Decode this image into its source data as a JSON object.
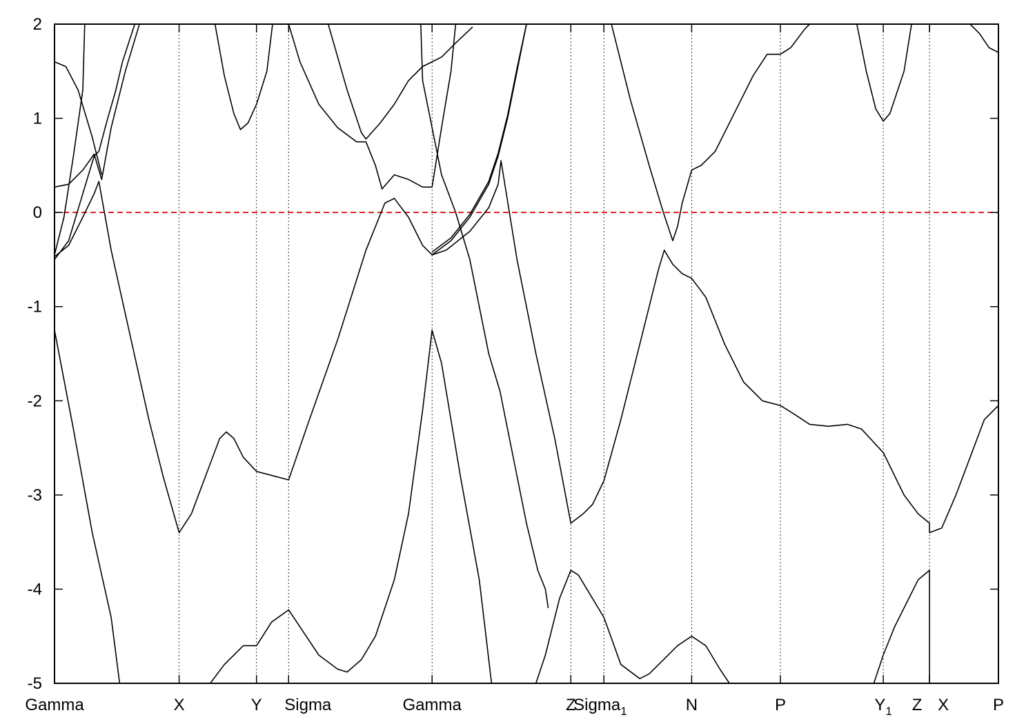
{
  "chart_data": {
    "type": "line",
    "title": "",
    "xlabel": "",
    "ylabel": "",
    "xlim": [
      0,
      1.0
    ],
    "ylim": [
      -5,
      2
    ],
    "y_ticks": [
      2,
      1,
      0,
      -1,
      -2,
      -3,
      -4,
      -5
    ],
    "grid": "vertical dotted lines at high-symmetry points",
    "fermi_level": {
      "y": 0,
      "color": "#dd0000",
      "style": "dashed"
    },
    "line_color": "#000000",
    "k_points": [
      {
        "label": "Gamma",
        "sub": "",
        "x": 0.0
      },
      {
        "label": "X",
        "sub": "",
        "x": 0.132
      },
      {
        "label": "Y",
        "sub": "",
        "x": 0.214
      },
      {
        "label": "Sigma",
        "sub": "",
        "x": 0.248
      },
      {
        "label": "Gamma",
        "sub": "",
        "x": 0.4
      },
      {
        "label": "Z",
        "sub": "",
        "x": 0.547
      },
      {
        "label": "Sigma",
        "sub": "1",
        "x": 0.582
      },
      {
        "label": "N",
        "sub": "",
        "x": 0.675
      },
      {
        "label": "P",
        "sub": "",
        "x": 0.769
      },
      {
        "label": "Y",
        "sub": "1",
        "x": 0.878
      },
      {
        "label": "Z",
        "sub": "",
        "x": 0.927
      },
      {
        "label": "X",
        "sub": "",
        "x": 0.927
      },
      {
        "label": "P",
        "sub": "",
        "x": 1.0
      }
    ],
    "series": [
      {
        "values": [
          [
            0.0,
            -1.25
          ],
          [
            0.02,
            -2.3
          ],
          [
            0.04,
            -3.4
          ],
          [
            0.06,
            -4.3
          ],
          [
            0.069,
            -5.0
          ]
        ]
      },
      {
        "values": [
          [
            0.0,
            -0.45
          ],
          [
            0.01,
            -0.05
          ],
          [
            0.02,
            0.6
          ],
          [
            0.03,
            1.3
          ],
          [
            0.032,
            2.0
          ]
        ]
      },
      {
        "values": [
          [
            0.0,
            1.6
          ],
          [
            0.012,
            1.55
          ],
          [
            0.025,
            1.3
          ],
          [
            0.04,
            0.8
          ],
          [
            0.05,
            0.4
          ]
        ]
      },
      {
        "values": [
          [
            0.0,
            0.27
          ],
          [
            0.015,
            0.3
          ],
          [
            0.03,
            0.45
          ],
          [
            0.042,
            0.62
          ],
          [
            0.047,
            0.45
          ],
          [
            0.05,
            0.35
          ],
          [
            0.06,
            0.9
          ],
          [
            0.075,
            1.5
          ],
          [
            0.09,
            2.0
          ]
        ]
      },
      {
        "values": [
          [
            0.0,
            -0.47
          ],
          [
            0.015,
            -0.35
          ],
          [
            0.03,
            -0.05
          ],
          [
            0.042,
            0.2
          ],
          [
            0.047,
            0.33
          ],
          [
            0.06,
            -0.4
          ],
          [
            0.08,
            -1.3
          ],
          [
            0.1,
            -2.2
          ],
          [
            0.115,
            -2.8
          ],
          [
            0.132,
            -3.4
          ],
          [
            0.145,
            -3.2
          ],
          [
            0.16,
            -2.8
          ],
          [
            0.175,
            -2.4
          ],
          [
            0.182,
            -2.33
          ],
          [
            0.19,
            -2.4
          ],
          [
            0.2,
            -2.6
          ],
          [
            0.214,
            -2.75
          ],
          [
            0.248,
            -2.84
          ],
          [
            0.27,
            -2.2
          ],
          [
            0.3,
            -1.35
          ],
          [
            0.33,
            -0.4
          ],
          [
            0.35,
            0.1
          ],
          [
            0.36,
            0.15
          ],
          [
            0.375,
            -0.05
          ],
          [
            0.39,
            -0.35
          ],
          [
            0.4,
            -0.45
          ],
          [
            0.415,
            -0.4
          ],
          [
            0.44,
            -0.2
          ],
          [
            0.46,
            0.05
          ],
          [
            0.47,
            0.3
          ],
          [
            0.473,
            0.55
          ],
          [
            0.49,
            -0.5
          ],
          [
            0.51,
            -1.5
          ],
          [
            0.53,
            -2.4
          ],
          [
            0.547,
            -3.3
          ],
          [
            0.56,
            -3.2
          ],
          [
            0.57,
            -3.1
          ],
          [
            0.582,
            -2.85
          ],
          [
            0.6,
            -2.2
          ],
          [
            0.62,
            -1.4
          ],
          [
            0.64,
            -0.6
          ],
          [
            0.646,
            -0.4
          ],
          [
            0.655,
            -0.55
          ],
          [
            0.665,
            -0.65
          ],
          [
            0.675,
            -0.7
          ],
          [
            0.69,
            -0.9
          ],
          [
            0.71,
            -1.4
          ],
          [
            0.73,
            -1.8
          ],
          [
            0.75,
            -2.0
          ],
          [
            0.769,
            -2.05
          ],
          [
            0.785,
            -2.15
          ],
          [
            0.8,
            -2.25
          ],
          [
            0.82,
            -2.27
          ],
          [
            0.84,
            -2.25
          ],
          [
            0.855,
            -2.3
          ],
          [
            0.878,
            -2.55
          ],
          [
            0.9,
            -3.0
          ],
          [
            0.915,
            -3.2
          ],
          [
            0.927,
            -3.3
          ],
          [
            0.927,
            -3.4
          ],
          [
            0.94,
            -3.35
          ],
          [
            0.955,
            -3.0
          ],
          [
            0.97,
            -2.6
          ],
          [
            0.985,
            -2.2
          ],
          [
            1.0,
            -2.05
          ]
        ]
      },
      {
        "values": [
          [
            0.0,
            -0.5
          ],
          [
            0.015,
            -0.3
          ],
          [
            0.03,
            0.2
          ],
          [
            0.042,
            0.6
          ],
          [
            0.047,
            0.65
          ],
          [
            0.055,
            0.95
          ],
          [
            0.065,
            1.3
          ],
          [
            0.072,
            1.6
          ],
          [
            0.085,
            2.0
          ]
        ]
      },
      {
        "values": [
          [
            0.165,
            -5.0
          ],
          [
            0.18,
            -4.8
          ],
          [
            0.2,
            -4.6
          ],
          [
            0.214,
            -4.6
          ],
          [
            0.23,
            -4.35
          ],
          [
            0.248,
            -4.22
          ],
          [
            0.26,
            -4.4
          ],
          [
            0.28,
            -4.7
          ],
          [
            0.3,
            -4.85
          ],
          [
            0.31,
            -4.88
          ],
          [
            0.325,
            -4.75
          ],
          [
            0.34,
            -4.5
          ],
          [
            0.36,
            -3.9
          ],
          [
            0.375,
            -3.2
          ],
          [
            0.39,
            -2.1
          ],
          [
            0.4,
            -1.25
          ],
          [
            0.41,
            -1.6
          ],
          [
            0.43,
            -2.8
          ],
          [
            0.45,
            -3.9
          ],
          [
            0.463,
            -5.0
          ]
        ]
      },
      {
        "values": [
          [
            0.17,
            2.0
          ],
          [
            0.18,
            1.45
          ],
          [
            0.19,
            1.05
          ],
          [
            0.197,
            0.88
          ],
          [
            0.205,
            0.95
          ],
          [
            0.214,
            1.15
          ],
          [
            0.225,
            1.5
          ],
          [
            0.231,
            2.0
          ]
        ]
      },
      {
        "values": [
          [
            0.248,
            2.0
          ],
          [
            0.26,
            1.6
          ],
          [
            0.28,
            1.15
          ],
          [
            0.3,
            0.9
          ],
          [
            0.32,
            0.75
          ],
          [
            0.33,
            0.75
          ],
          [
            0.34,
            0.5
          ],
          [
            0.347,
            0.25
          ],
          [
            0.36,
            0.4
          ],
          [
            0.375,
            0.35
          ],
          [
            0.39,
            0.27
          ],
          [
            0.4,
            0.27
          ],
          [
            0.41,
            0.9
          ],
          [
            0.42,
            1.5
          ],
          [
            0.425,
            2.0
          ]
        ]
      },
      {
        "values": [
          [
            0.29,
            2.0
          ],
          [
            0.31,
            1.3
          ],
          [
            0.325,
            0.85
          ],
          [
            0.33,
            0.78
          ],
          [
            0.345,
            0.95
          ],
          [
            0.36,
            1.15
          ],
          [
            0.375,
            1.4
          ],
          [
            0.39,
            1.55
          ],
          [
            0.4,
            1.6
          ],
          [
            0.41,
            1.65
          ],
          [
            0.425,
            1.8
          ],
          [
            0.443,
            1.97
          ]
        ]
      },
      {
        "values": [
          [
            0.4,
            -0.45
          ],
          [
            0.42,
            -0.3
          ],
          [
            0.44,
            -0.05
          ],
          [
            0.46,
            0.3
          ],
          [
            0.47,
            0.6
          ],
          [
            0.48,
            1.0
          ],
          [
            0.49,
            1.5
          ],
          [
            0.5,
            2.0
          ]
        ]
      },
      {
        "values": [
          [
            0.4,
            -0.42
          ],
          [
            0.42,
            -0.27
          ],
          [
            0.44,
            -0.02
          ],
          [
            0.46,
            0.33
          ],
          [
            0.47,
            0.63
          ],
          [
            0.48,
            1.03
          ],
          [
            0.49,
            1.53
          ],
          [
            0.5,
            2.0
          ]
        ]
      },
      {
        "values": [
          [
            0.388,
            2.0
          ],
          [
            0.39,
            1.4
          ],
          [
            0.4,
            0.9
          ],
          [
            0.41,
            0.4
          ],
          [
            0.425,
            0.0
          ],
          [
            0.44,
            -0.5
          ],
          [
            0.45,
            -1.0
          ],
          [
            0.46,
            -1.5
          ],
          [
            0.472,
            -1.9
          ],
          [
            0.48,
            -2.3
          ],
          [
            0.49,
            -2.8
          ],
          [
            0.5,
            -3.3
          ],
          [
            0.512,
            -3.8
          ],
          [
            0.52,
            -4.0
          ],
          [
            0.523,
            -4.2
          ]
        ]
      },
      {
        "values": [
          [
            0.51,
            -5.0
          ],
          [
            0.52,
            -4.7
          ],
          [
            0.535,
            -4.1
          ],
          [
            0.547,
            -3.8
          ],
          [
            0.555,
            -3.85
          ],
          [
            0.57,
            -4.1
          ],
          [
            0.582,
            -4.3
          ],
          [
            0.6,
            -4.8
          ],
          [
            0.62,
            -4.95
          ],
          [
            0.63,
            -4.9
          ],
          [
            0.645,
            -4.75
          ],
          [
            0.66,
            -4.6
          ],
          [
            0.675,
            -4.5
          ],
          [
            0.69,
            -4.6
          ],
          [
            0.705,
            -4.85
          ],
          [
            0.715,
            -5.0
          ]
        ]
      },
      {
        "values": [
          [
            0.59,
            2.0
          ],
          [
            0.61,
            1.2
          ],
          [
            0.63,
            0.5
          ],
          [
            0.645,
            0.0
          ],
          [
            0.655,
            -0.3
          ],
          [
            0.66,
            -0.15
          ],
          [
            0.665,
            0.1
          ],
          [
            0.675,
            0.45
          ],
          [
            0.685,
            0.5
          ],
          [
            0.7,
            0.65
          ],
          [
            0.72,
            1.05
          ],
          [
            0.74,
            1.45
          ],
          [
            0.755,
            1.68
          ],
          [
            0.769,
            1.68
          ],
          [
            0.78,
            1.75
          ],
          [
            0.795,
            1.95
          ],
          [
            0.8,
            2.0
          ]
        ]
      },
      {
        "values": [
          [
            0.85,
            2.0
          ],
          [
            0.86,
            1.5
          ],
          [
            0.87,
            1.1
          ],
          [
            0.878,
            0.97
          ],
          [
            0.885,
            1.05
          ],
          [
            0.9,
            1.5
          ],
          [
            0.908,
            2.0
          ]
        ]
      },
      {
        "values": [
          [
            0.868,
            -5.0
          ],
          [
            0.878,
            -4.7
          ],
          [
            0.89,
            -4.4
          ],
          [
            0.905,
            -4.1
          ],
          [
            0.915,
            -3.9
          ],
          [
            0.927,
            -3.8
          ],
          [
            0.927,
            -5.0
          ]
        ]
      },
      {
        "values": [
          [
            0.97,
            2.0
          ],
          [
            0.98,
            1.9
          ],
          [
            0.99,
            1.75
          ],
          [
            1.0,
            1.7
          ]
        ]
      }
    ]
  }
}
